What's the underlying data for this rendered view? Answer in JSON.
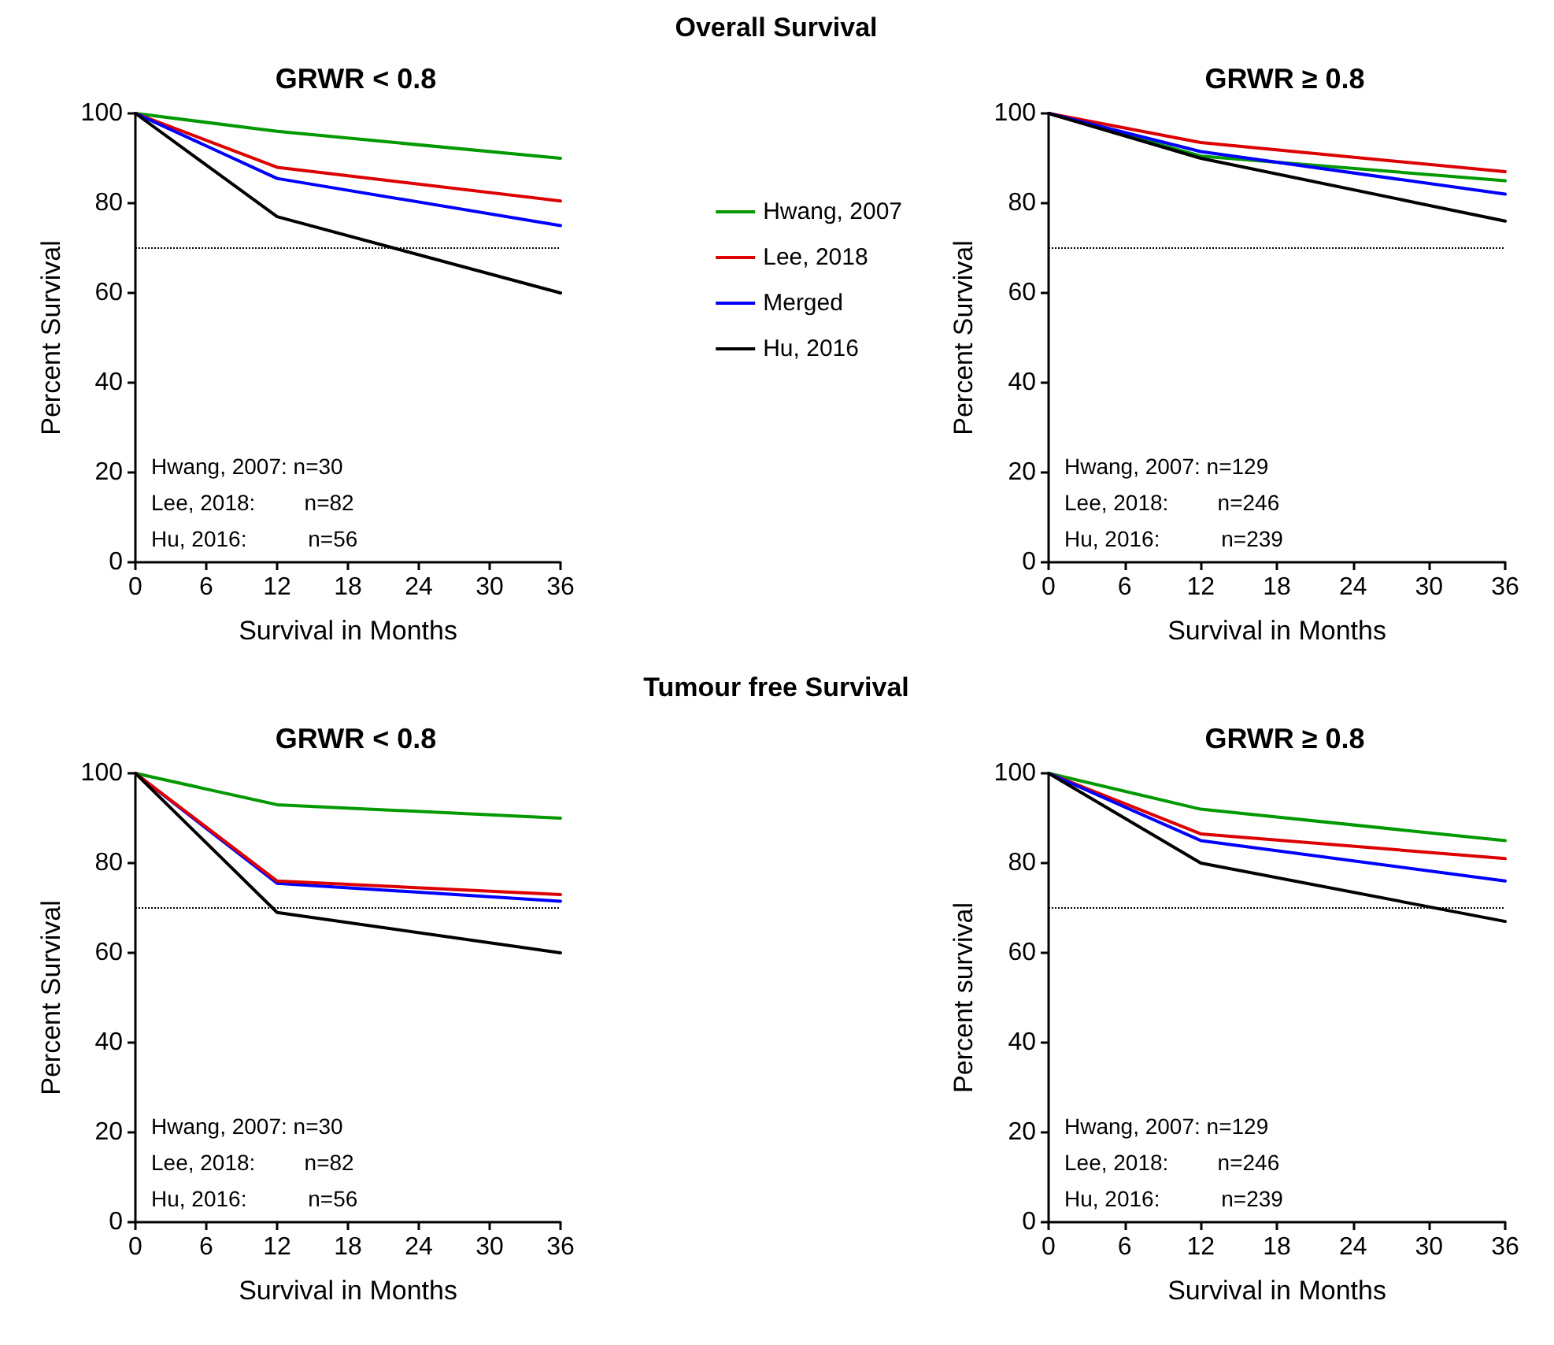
{
  "chart_data": [
    {
      "type": "other",
      "title": "Overall Survival"
    },
    {
      "type": "line",
      "subtitle": "GRWR < 0.8",
      "xlabel": "Survival in Months",
      "ylabel": "Percent Survival",
      "x": [
        0,
        12,
        36
      ],
      "xlim": [
        0,
        36
      ],
      "xticks": [
        0,
        6,
        12,
        18,
        24,
        30,
        36
      ],
      "ylim": [
        0,
        100
      ],
      "yticks": [
        0,
        20,
        40,
        60,
        80,
        100
      ],
      "grid": false,
      "legend": "right",
      "marker": "none",
      "line_style": "solid",
      "series": [
        {
          "name": "Hwang, 2007",
          "color": "#009900",
          "values": [
            100,
            96,
            90
          ]
        },
        {
          "name": "Lee, 2018",
          "color": "#dd0000",
          "values": [
            100,
            88,
            80.5
          ]
        },
        {
          "name": "Merged",
          "color": "#0000ff",
          "values": [
            100,
            85.5,
            75
          ]
        },
        {
          "name": "Hu, 2016",
          "color": "#000000",
          "values": [
            100,
            77,
            60
          ]
        }
      ],
      "ref_lines": [
        {
          "axis": "y",
          "value": 70,
          "line_style": "dotted",
          "color": "#000000"
        }
      ],
      "annotations": [
        "Hwang, 2007: n=30",
        "Lee, 2018:        n=82",
        "Hu, 2016:          n=56"
      ]
    },
    {
      "type": "line",
      "subtitle": "GRWR ≥ 0.8",
      "xlabel": "Survival in Months",
      "ylabel": "Percent Survival",
      "x": [
        0,
        12,
        36
      ],
      "xlim": [
        0,
        36
      ],
      "xticks": [
        0,
        6,
        12,
        18,
        24,
        30,
        36
      ],
      "ylim": [
        0,
        100
      ],
      "yticks": [
        0,
        20,
        40,
        60,
        80,
        100
      ],
      "grid": false,
      "marker": "none",
      "line_style": "solid",
      "series": [
        {
          "color": "#009900",
          "values": [
            100,
            90.5,
            85
          ]
        },
        {
          "color": "#dd0000",
          "values": [
            100,
            93.5,
            87
          ]
        },
        {
          "color": "#0000ff",
          "values": [
            100,
            91.5,
            82
          ]
        },
        {
          "color": "#000000",
          "values": [
            100,
            90,
            76
          ]
        }
      ],
      "ref_lines": [
        {
          "axis": "y",
          "value": 70,
          "line_style": "dotted",
          "color": "#000000"
        }
      ],
      "annotations": [
        "Hwang, 2007: n=129",
        "Lee, 2018:        n=246",
        "Hu, 2016:          n=239"
      ]
    },
    {
      "type": "other",
      "title": "Tumour free Survival"
    },
    {
      "type": "line",
      "subtitle": "GRWR < 0.8",
      "xlabel": "Survival in Months",
      "ylabel": "Percent Survival",
      "x": [
        0,
        12,
        36
      ],
      "xlim": [
        0,
        36
      ],
      "xticks": [
        0,
        6,
        12,
        18,
        24,
        30,
        36
      ],
      "ylim": [
        0,
        100
      ],
      "yticks": [
        0,
        20,
        40,
        60,
        80,
        100
      ],
      "grid": false,
      "marker": "none",
      "line_style": "solid",
      "series": [
        {
          "color": "#009900",
          "values": [
            100,
            93,
            90
          ]
        },
        {
          "color": "#0000ff",
          "values": [
            100,
            75.5,
            71.5
          ]
        },
        {
          "color": "#dd0000",
          "values": [
            100,
            76,
            73
          ]
        },
        {
          "color": "#000000",
          "values": [
            100,
            69,
            60
          ]
        }
      ],
      "ref_lines": [
        {
          "axis": "y",
          "value": 70,
          "line_style": "dotted",
          "color": "#000000"
        }
      ],
      "annotations": [
        "Hwang, 2007: n=30",
        "Lee, 2018:        n=82",
        "Hu, 2016:          n=56"
      ]
    },
    {
      "type": "line",
      "subtitle": "GRWR ≥ 0.8",
      "xlabel": "Survival in Months",
      "ylabel": "Percent survival",
      "x": [
        0,
        12,
        36
      ],
      "xlim": [
        0,
        36
      ],
      "xticks": [
        0,
        6,
        12,
        18,
        24,
        30,
        36
      ],
      "ylim": [
        0,
        100
      ],
      "yticks": [
        0,
        20,
        40,
        60,
        80,
        100
      ],
      "grid": false,
      "marker": "none",
      "line_style": "solid",
      "series": [
        {
          "color": "#009900",
          "values": [
            100,
            92,
            85
          ]
        },
        {
          "color": "#dd0000",
          "values": [
            100,
            86.5,
            81
          ]
        },
        {
          "color": "#0000ff",
          "values": [
            100,
            85,
            76
          ]
        },
        {
          "color": "#000000",
          "values": [
            100,
            80,
            67
          ]
        }
      ],
      "ref_lines": [
        {
          "axis": "y",
          "value": 70,
          "line_style": "dotted",
          "color": "#000000"
        }
      ],
      "annotations": [
        "Hwang, 2007: n=129",
        "Lee, 2018:        n=246",
        "Hu, 2016:          n=239"
      ]
    }
  ]
}
